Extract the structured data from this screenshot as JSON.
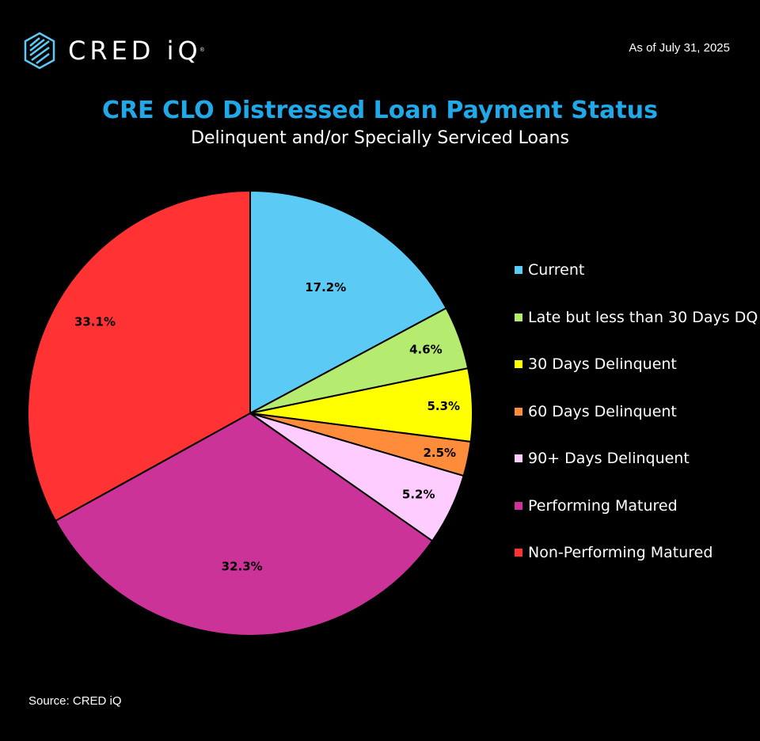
{
  "header": {
    "brand": "CRED iQ",
    "as_of": "As of July 31, 2025"
  },
  "footer": {
    "source": "Source: CRED iQ"
  },
  "colors": {
    "background": "#000000",
    "title": "#1fa9e8"
  },
  "chart_data": {
    "type": "pie",
    "title": "CRE CLO Distressed Loan Payment Status",
    "subtitle": "Delinquent and/or Specially Serviced Loans",
    "legend_position": "right",
    "start": "12 o'clock, clockwise",
    "slices": [
      {
        "name": "Current",
        "value": 17.2,
        "label": "17.2%",
        "color": "#5bcbf5"
      },
      {
        "name": "Late but less than 30 Days DQ",
        "value": 4.6,
        "label": "4.6%",
        "color": "#b5eb6e"
      },
      {
        "name": "30 Days Delinquent",
        "value": 5.3,
        "label": "5.3%",
        "color": "#ffff00"
      },
      {
        "name": "60 Days Delinquent",
        "value": 2.5,
        "label": "2.5%",
        "color": "#ff8c3b"
      },
      {
        "name": "90+ Days Delinquent",
        "value": 5.2,
        "label": "5.2%",
        "color": "#ffccff"
      },
      {
        "name": "Performing Matured",
        "value": 32.3,
        "label": "32.3%",
        "color": "#cc3399"
      },
      {
        "name": "Non-Performing Matured",
        "value": 33.1,
        "label": "33.1%",
        "color": "#ff3333"
      }
    ]
  }
}
